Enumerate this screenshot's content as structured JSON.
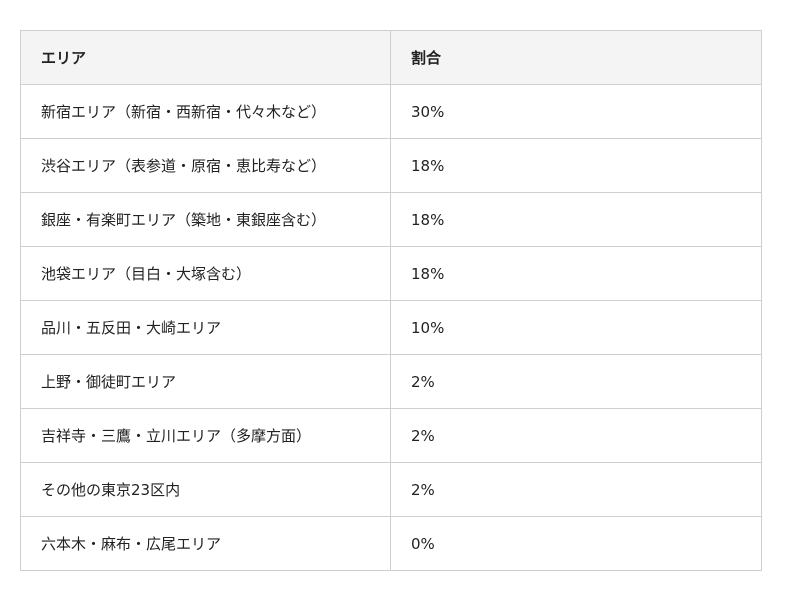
{
  "table": {
    "headers": [
      "エリア",
      "割合"
    ],
    "rows": [
      [
        "新宿エリア（新宿・西新宿・代々木など）",
        "30%"
      ],
      [
        "渋谷エリア（表参道・原宿・恵比寿など）",
        "18%"
      ],
      [
        "銀座・有楽町エリア（築地・東銀座含む）",
        "18%"
      ],
      [
        "池袋エリア（目白・大塚含む）",
        "18%"
      ],
      [
        "品川・五反田・大崎エリア",
        "10%"
      ],
      [
        "上野・御徒町エリア",
        "2%"
      ],
      [
        "吉祥寺・三鷹・立川エリア（多摩方面）",
        "2%"
      ],
      [
        "その他の東京23区内",
        "2%"
      ],
      [
        "六本木・麻布・広尾エリア",
        "0%"
      ]
    ]
  }
}
